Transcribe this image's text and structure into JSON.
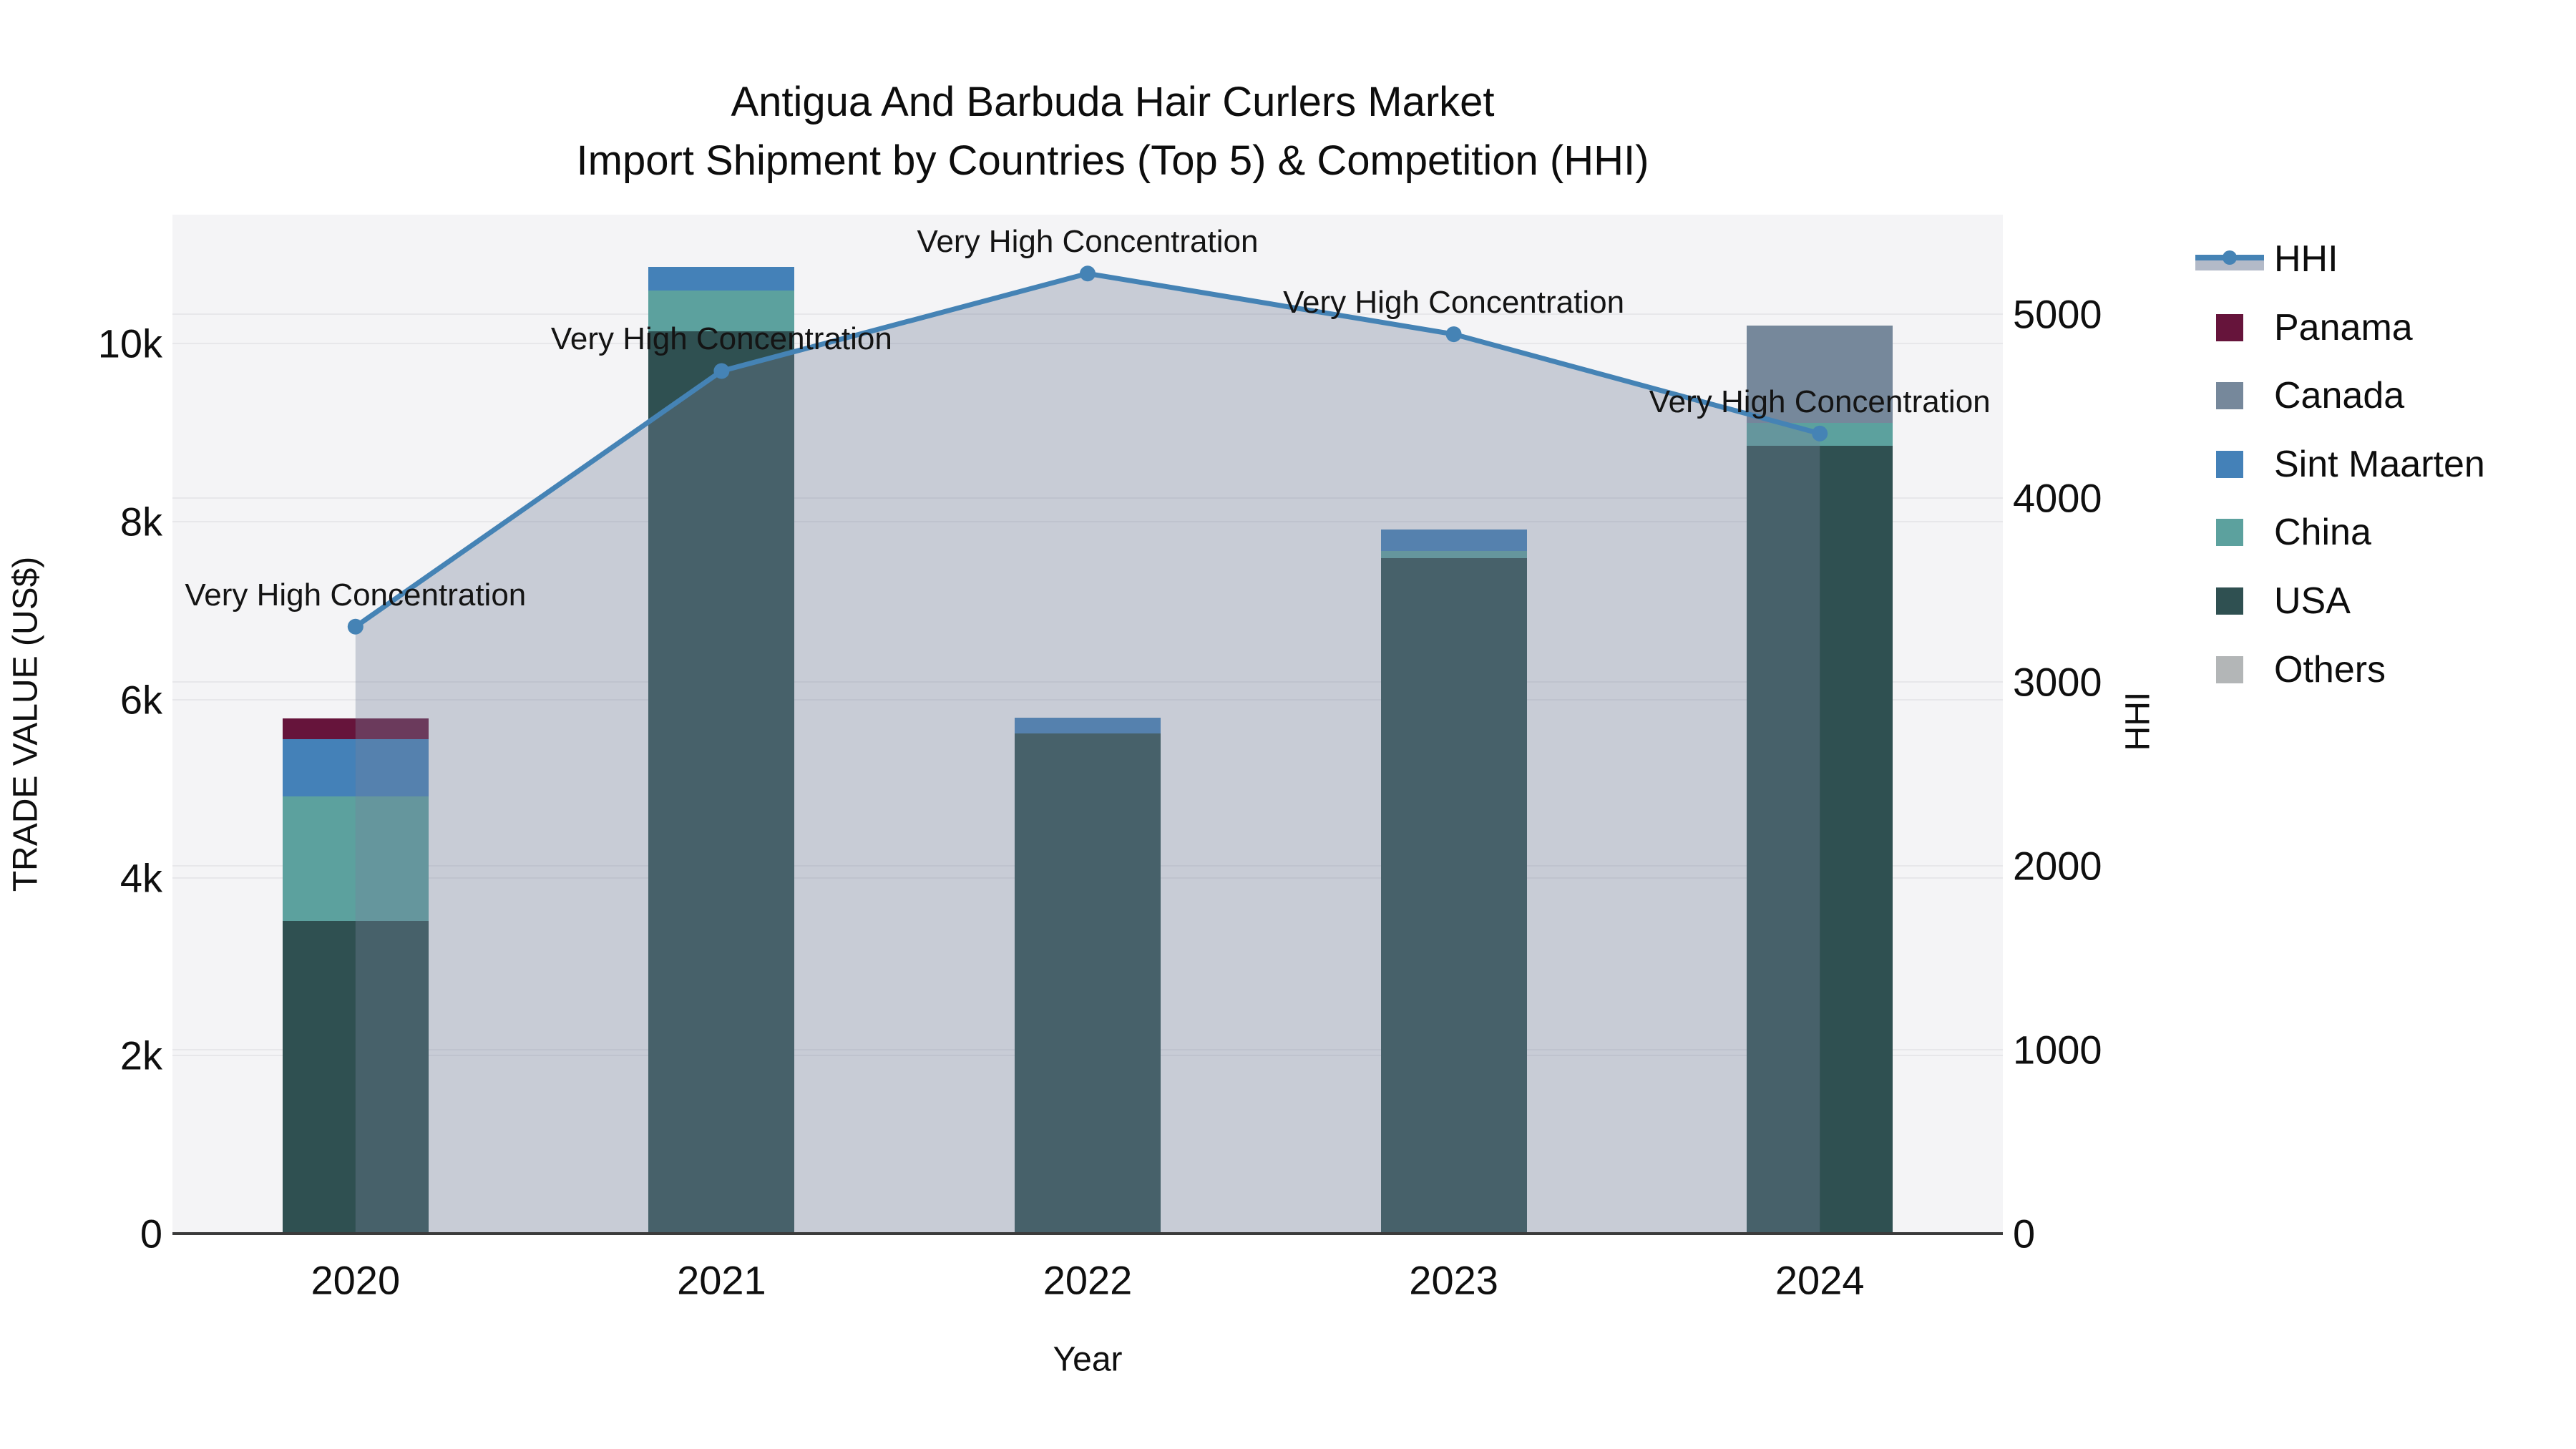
{
  "title": {
    "line1": "Antigua And Barbuda Hair Curlers Market",
    "line2": "Import Shipment by Countries (Top 5) & Competition (HHI)"
  },
  "axes": {
    "left": {
      "label": "TRADE VALUE (US$)",
      "tick_labels": [
        "0",
        "2k",
        "4k",
        "6k",
        "8k",
        "10k"
      ],
      "tick_values": [
        0,
        2000,
        4000,
        6000,
        8000,
        10000
      ],
      "max": 11450
    },
    "right": {
      "label": "HHI",
      "tick_labels": [
        "0",
        "1000",
        "2000",
        "3000",
        "4000",
        "5000"
      ],
      "tick_values": [
        0,
        1000,
        2000,
        3000,
        4000,
        5000
      ],
      "max": 5540
    },
    "x": {
      "label": "Year",
      "categories": [
        "2020",
        "2021",
        "2022",
        "2023",
        "2024"
      ]
    }
  },
  "colors": {
    "plot_bg": "#f4f4f6",
    "grid": "#e7e7ea",
    "spine": "#3b3b3b",
    "hhi_line": "#4583b5",
    "hhi_area": "rgba(117,130,155,0.35)",
    "Panama": "#66143b",
    "Canada": "#76889b",
    "Sint Maarten": "#4481b8",
    "China": "#5ca19e",
    "USA": "#2f5051",
    "Others": "#b3b6b7"
  },
  "legend_order": [
    "HHI",
    "Panama",
    "Canada",
    "Sint Maarten",
    "China",
    "USA",
    "Others"
  ],
  "chart_data": {
    "type": "bar+line combo (stacked bars left axis, HHI line right axis)",
    "categories": [
      "2020",
      "2021",
      "2022",
      "2023",
      "2024"
    ],
    "stack_order_bottom_to_top": [
      "USA",
      "China",
      "Sint Maarten",
      "Canada",
      "Panama",
      "Others"
    ],
    "series": [
      {
        "name": "Panama",
        "axis": "left",
        "values": [
          230,
          0,
          0,
          0,
          0
        ]
      },
      {
        "name": "Canada",
        "axis": "left",
        "values": [
          0,
          0,
          0,
          0,
          1090
        ]
      },
      {
        "name": "Sint Maarten",
        "axis": "left",
        "values": [
          650,
          260,
          180,
          240,
          0
        ]
      },
      {
        "name": "China",
        "axis": "left",
        "values": [
          1400,
          460,
          0,
          80,
          260
        ]
      },
      {
        "name": "USA",
        "axis": "left",
        "values": [
          3510,
          10140,
          5620,
          7590,
          8850
        ]
      },
      {
        "name": "Others",
        "axis": "left",
        "values": [
          0,
          0,
          0,
          0,
          0
        ]
      }
    ],
    "hhi": {
      "name": "HHI",
      "axis": "right",
      "values": [
        3300,
        4690,
        5220,
        4890,
        4350
      ]
    },
    "bar_totals": [
      5790,
      10860,
      5800,
      7910,
      10200
    ],
    "annotations": [
      "Very High Concentration",
      "Very High Concentration",
      "Very High Concentration",
      "Very High Concentration",
      "Very High Concentration"
    ],
    "title": "Antigua And Barbuda Hair Curlers Market\nImport Shipment by Countries (Top 5) & Competition (HHI)",
    "xlabel": "Year",
    "ylabel_left": "TRADE VALUE (US$)",
    "ylabel_right": "HHI",
    "left_ylim": [
      0,
      11450
    ],
    "right_ylim": [
      0,
      5540
    ],
    "grid": true,
    "legend_position": "right"
  }
}
